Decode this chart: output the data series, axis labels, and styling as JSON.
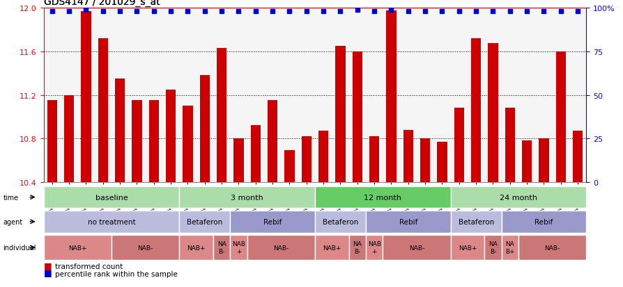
{
  "title": "GDS4147 / 201029_s_at",
  "samples": [
    "GSM641342",
    "GSM641346",
    "GSM641350",
    "GSM641354",
    "GSM641358",
    "GSM641362",
    "GSM641366",
    "GSM641370",
    "GSM641343",
    "GSM641351",
    "GSM641355",
    "GSM641359",
    "GSM641347",
    "GSM641363",
    "GSM641367",
    "GSM641371",
    "GSM641344",
    "GSM641352",
    "GSM641356",
    "GSM641360",
    "GSM641348",
    "GSM641364",
    "GSM641368",
    "GSM641372",
    "GSM641345",
    "GSM641353",
    "GSM641357",
    "GSM641361",
    "GSM641349",
    "GSM641365",
    "GSM641369",
    "GSM641373"
  ],
  "bar_values": [
    11.15,
    11.2,
    11.97,
    11.72,
    11.35,
    11.15,
    11.15,
    11.25,
    11.1,
    11.38,
    11.63,
    10.8,
    10.92,
    11.15,
    10.69,
    10.82,
    10.87,
    11.65,
    11.6,
    10.82,
    11.98,
    10.88,
    10.8,
    10.77,
    11.08,
    11.72,
    11.68,
    11.08,
    10.78,
    10.8,
    11.6,
    10.87
  ],
  "percentile_values": [
    98,
    98,
    99,
    98,
    98,
    98,
    98,
    98,
    98,
    98,
    98,
    98,
    98,
    98,
    98,
    98,
    98,
    98,
    99,
    98,
    99,
    98,
    98,
    98,
    98,
    98,
    98,
    98,
    98,
    98,
    98,
    98
  ],
  "bar_color": "#cc0000",
  "percentile_color": "#0000cc",
  "ylim_left": [
    10.4,
    12.0
  ],
  "ylim_right": [
    0,
    100
  ],
  "yticks_left": [
    10.4,
    10.8,
    11.2,
    11.6,
    12.0
  ],
  "yticks_right": [
    0,
    25,
    50,
    75,
    100
  ],
  "grid_lines": [
    10.8,
    11.2,
    11.6
  ],
  "time_groups": [
    {
      "label": "baseline",
      "start": 0,
      "end": 8,
      "color": "#aaddaa"
    },
    {
      "label": "3 month",
      "start": 8,
      "end": 16,
      "color": "#aaddaa"
    },
    {
      "label": "12 month",
      "start": 16,
      "end": 24,
      "color": "#66cc66"
    },
    {
      "label": "24 month",
      "start": 24,
      "end": 32,
      "color": "#aaddaa"
    }
  ],
  "agent_groups": [
    {
      "label": "no treatment",
      "start": 0,
      "end": 8,
      "color": "#bbbbdd"
    },
    {
      "label": "Betaferon",
      "start": 8,
      "end": 11,
      "color": "#bbbbdd"
    },
    {
      "label": "Rebif",
      "start": 11,
      "end": 16,
      "color": "#9999cc"
    },
    {
      "label": "Betaferon",
      "start": 16,
      "end": 19,
      "color": "#bbbbdd"
    },
    {
      "label": "Rebif",
      "start": 19,
      "end": 24,
      "color": "#9999cc"
    },
    {
      "label": "Betaferon",
      "start": 24,
      "end": 27,
      "color": "#bbbbdd"
    },
    {
      "label": "Rebif",
      "start": 27,
      "end": 32,
      "color": "#9999cc"
    }
  ],
  "individual_groups": [
    {
      "label": "NAB+",
      "start": 0,
      "end": 4,
      "color": "#dd8888"
    },
    {
      "label": "NAB-",
      "start": 4,
      "end": 8,
      "color": "#cc7777"
    },
    {
      "label": "NAB+",
      "start": 8,
      "end": 10,
      "color": "#dd8888"
    },
    {
      "label": "NA\nB-",
      "start": 10,
      "end": 11,
      "color": "#cc7777"
    },
    {
      "label": "NAB\n+",
      "start": 11,
      "end": 12,
      "color": "#dd8888"
    },
    {
      "label": "NAB-",
      "start": 12,
      "end": 16,
      "color": "#cc7777"
    },
    {
      "label": "NAB+",
      "start": 16,
      "end": 18,
      "color": "#dd8888"
    },
    {
      "label": "NA\nB-",
      "start": 18,
      "end": 19,
      "color": "#cc7777"
    },
    {
      "label": "NAB\n+",
      "start": 19,
      "end": 20,
      "color": "#dd8888"
    },
    {
      "label": "NAB-",
      "start": 20,
      "end": 24,
      "color": "#cc7777"
    },
    {
      "label": "NAB+",
      "start": 24,
      "end": 26,
      "color": "#dd8888"
    },
    {
      "label": "NA\nB-",
      "start": 26,
      "end": 27,
      "color": "#cc7777"
    },
    {
      "label": "NA\nB+",
      "start": 27,
      "end": 28,
      "color": "#dd8888"
    },
    {
      "label": "NAB-",
      "start": 28,
      "end": 32,
      "color": "#cc7777"
    }
  ],
  "row_labels": [
    "time",
    "agent",
    "individual"
  ],
  "legend_items": [
    {
      "label": "transformed count",
      "color": "#cc0000",
      "marker": "s"
    },
    {
      "label": "percentile rank within the sample",
      "color": "#0000cc",
      "marker": "s"
    }
  ],
  "bg_color": "#ffffff",
  "plot_bg_color": "#f5f5f5"
}
